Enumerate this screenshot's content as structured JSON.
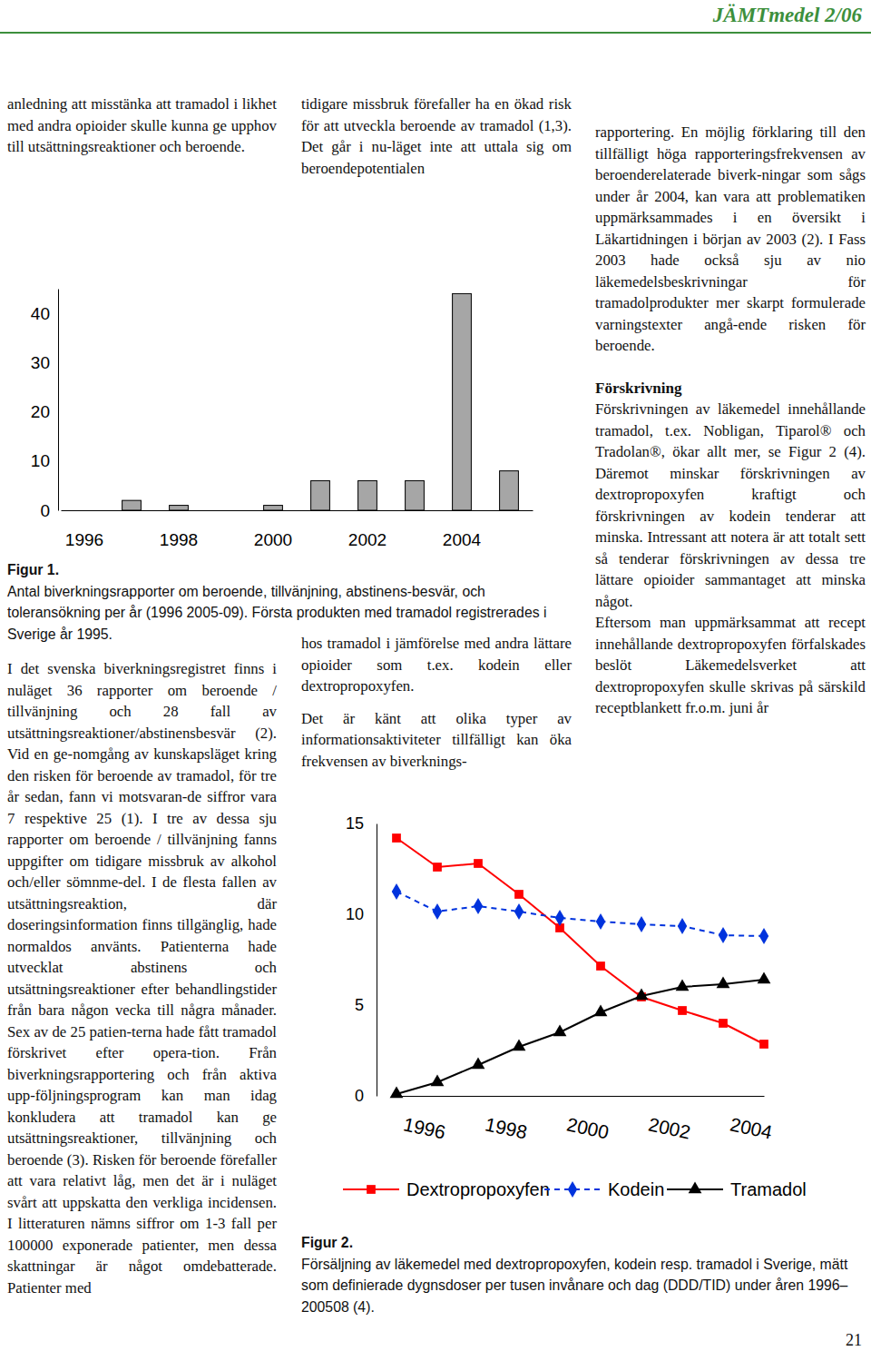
{
  "header": {
    "title": "JÄMTmedel 2/06",
    "page_number": "21"
  },
  "text": {
    "col1_top": "anledning att misstänka att tramadol i likhet med andra opioider skulle kunna ge upphov till utsättningsreaktioner och beroende.",
    "col2_top": "tidigare missbruk förefaller ha en ökad risk för att utveckla beroende av tramadol (1,3). Det går i nu-läget inte att uttala sig om beroendepotentialen",
    "col2_bottom": [
      "hos tramadol i jämförelse med andra lättare opioider som t.ex. kodein eller dextropropoxyfen.",
      "Det är känt att olika typer av informationsaktiviteter tillfälligt kan öka frekvensen av biverknings-"
    ],
    "col1_main": "I det svenska biverkningsregistret finns i nuläget 36 rapporter om beroende / tillvänjning och 28 fall av utsättningsreaktioner/abstinensbesvär (2). Vid en ge-nomgång av kunskapsläget kring den risken för beroende av tramadol, för tre år sedan, fann vi motsvaran-de siffror vara 7 respektive 25 (1). I tre av dessa sju rapporter om beroende / tillvänjning fanns uppgifter om tidigare missbruk av alkohol och/eller sömnme-del. I de flesta fallen av utsättningsreaktion, där doseringsinformation finns tillgänglig, hade normaldos använts. Patienterna hade utvecklat abstinens och utsättningsreaktioner efter behandlingstider från bara någon vecka till några månader. Sex av de 25 patien-terna hade fått tramadol förskrivet efter opera-tion. Från biverkningsrapportering och från aktiva upp-följningsprogram kan man idag konkludera att tramadol kan ge utsättningsreaktioner, tillvänjning och beroende (3). Risken för beroende förefaller att vara relativt låg, men det är i nuläget svårt att uppskatta den verkliga incidensen. I litteraturen nämns siffror om 1-3 fall per 100000 exponerade patienter, men dessa skattningar är något omdebatterade. Patienter med",
    "col3": {
      "intro": "rapportering. En möjlig förklaring till den tillfälligt höga rapporteringsfrekvensen av beroenderelaterade biverk-ningar som sågs under år 2004, kan vara att problematiken uppmärksammades i en översikt i Läkartidningen i början av 2003 (2). I Fass 2003 hade också sju av nio läkemedelsbeskrivningar för tramadolprodukter mer skarpt formulerade varningstexter angå-ende risken för beroende.",
      "heading": "Förskrivning",
      "paragraphs": [
        "Förskrivningen av läkemedel innehållande tramadol, t.ex. Nobligan, Tiparol® och Tradolan®, ökar allt mer, se Figur 2 (4). Däremot minskar förskrivningen av dextropropoxyfen kraftigt och förskrivningen av kodein tenderar att minska. Intressant att notera är att totalt sett så tenderar förskrivningen av dessa tre lättare opioider sammantaget att minska något.",
        "Eftersom man uppmärksammat att recept innehållande dextropropoxyfen förfalskades beslöt Läkemedelsverket att dextropropoxyfen skulle skrivas på särskild receptblankett fr.o.m. juni år"
      ]
    }
  },
  "chart_data": [
    {
      "type": "bar",
      "title": "Figur 1.",
      "subtitle": "Antal biverkningsrapporter om beroende, tillvänjning, abstinens-besvär, och toleransökning per år (1996 2005-09). Första produkten med tramadol registrerades i Sverige år 1995.",
      "categories": [
        "1996",
        null,
        "1998",
        null,
        "2000",
        null,
        "2002",
        null,
        "2004",
        null
      ],
      "values": [
        0,
        2,
        1,
        0,
        1,
        6,
        6,
        6,
        44,
        8
      ],
      "color": "#a6a6a6",
      "ylim": [
        0,
        45
      ],
      "yticks": [
        0,
        10,
        20,
        30,
        40
      ],
      "grid": false
    },
    {
      "type": "line",
      "title": "Figur 2.",
      "subtitle": "Försäljning av läkemedel med dextropropoxyfen, kodein resp. tramadol i Sverige, mätt som definierade dygnsdoser per tusen invånare och dag (DDD/TID) under åren 1996– 200508 (4).",
      "categories": [
        "1996",
        null,
        "1998",
        null,
        "2000",
        null,
        "2002",
        null,
        "2004",
        null
      ],
      "series": [
        {
          "name": "Dextropropoxyfen",
          "color": "#ff0000",
          "marker": "square",
          "line_style": "solid",
          "values": [
            14.2,
            12.6,
            12.8,
            11.1,
            9.25,
            7.15,
            5.45,
            4.7,
            4.0,
            2.85
          ]
        },
        {
          "name": "Kodein",
          "color": "#0033dd",
          "marker": "diamond",
          "line_style": "dashed",
          "values": [
            11.25,
            10.15,
            10.45,
            10.15,
            9.8,
            9.6,
            9.45,
            9.35,
            8.85,
            8.8
          ]
        },
        {
          "name": "Tramadol",
          "color": "#000000",
          "marker": "triangle",
          "line_style": "solid",
          "values": [
            0.1,
            0.75,
            1.7,
            2.7,
            3.5,
            4.6,
            5.5,
            6.0,
            6.15,
            6.4
          ]
        }
      ],
      "ylim": [
        0,
        15
      ],
      "yticks": [
        0,
        5,
        10,
        15
      ],
      "grid": false,
      "legend": "bottom"
    }
  ]
}
